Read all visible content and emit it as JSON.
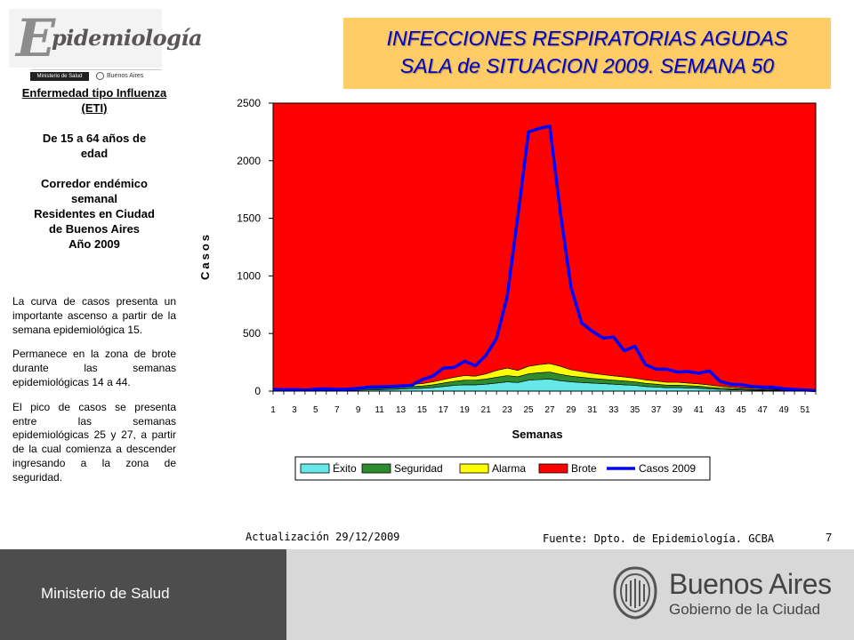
{
  "header": {
    "title_line1": "INFECCIONES RESPIRATORIAS AGUDAS",
    "title_line2": "SALA de SITUACION 2009. SEMANA 50"
  },
  "logo": {
    "word": "pidemiología",
    "initial": "E",
    "ministry": "Ministerio de Salud",
    "city": "Buenos Aires"
  },
  "sidebar": {
    "heading1": "Enfermedad tipo Influenza (ETI)",
    "age_line1": "De 15 a 64 años de",
    "age_line2": "edad",
    "corredor_line1": "Corredor endémico",
    "corredor_line2": "semanal",
    "residents_line1": "Residentes en Ciudad",
    "residents_line2": "de Buenos Aires",
    "year": "Año 2009",
    "paragraphs": [
      "La curva de casos presenta un importante ascenso a partir de la semana epidemiológica 15.",
      "Permanece en la zona de brote durante las semanas epidemiológicas 14 a 44.",
      "El pico de casos se presenta entre las semanas epidemiológicas 25 y 27, a partir de la cual comienza a descender ingresando a la zona de seguridad."
    ]
  },
  "chart_data": {
    "type": "area",
    "title": "",
    "xlabel": "Semanas",
    "ylabel": "Casos",
    "ylim": [
      0,
      2500
    ],
    "yticks": [
      0,
      500,
      1000,
      1500,
      2000,
      2500
    ],
    "x_tick_labels": [
      "1",
      "3",
      "5",
      "7",
      "9",
      "11",
      "13",
      "15",
      "17",
      "19",
      "21",
      "23",
      "25",
      "27",
      "29",
      "31",
      "33",
      "35",
      "37",
      "39",
      "41",
      "43",
      "45",
      "47",
      "49",
      "51"
    ],
    "x": [
      1,
      2,
      3,
      4,
      5,
      6,
      7,
      8,
      9,
      10,
      11,
      12,
      13,
      14,
      15,
      16,
      17,
      18,
      19,
      20,
      21,
      22,
      23,
      24,
      25,
      26,
      27,
      28,
      29,
      30,
      31,
      32,
      33,
      34,
      35,
      36,
      37,
      38,
      39,
      40,
      41,
      42,
      43,
      44,
      45,
      46,
      47,
      48,
      49,
      50,
      51,
      52
    ],
    "legend_position": "bottom",
    "series": [
      {
        "name": "Éxito",
        "kind": "stacked-area",
        "color": "#66e8e8",
        "values": [
          5,
          5,
          5,
          5,
          5,
          5,
          5,
          6,
          8,
          10,
          12,
          14,
          18,
          22,
          25,
          30,
          40,
          50,
          55,
          55,
          60,
          70,
          80,
          75,
          95,
          100,
          105,
          90,
          80,
          75,
          70,
          65,
          60,
          55,
          50,
          40,
          35,
          30,
          30,
          28,
          25,
          20,
          15,
          12,
          10,
          8,
          6,
          5,
          5,
          5,
          5,
          5
        ]
      },
      {
        "name": "Seguridad",
        "kind": "stacked-area",
        "color": "#2e8b2e",
        "values": [
          5,
          5,
          5,
          5,
          6,
          6,
          6,
          8,
          10,
          12,
          12,
          14,
          15,
          18,
          20,
          25,
          30,
          35,
          40,
          40,
          45,
          50,
          55,
          50,
          55,
          60,
          60,
          55,
          50,
          45,
          40,
          38,
          35,
          33,
          30,
          28,
          25,
          22,
          22,
          20,
          18,
          15,
          12,
          10,
          8,
          7,
          6,
          5,
          5,
          5,
          5,
          5
        ]
      },
      {
        "name": "Alarma",
        "kind": "stacked-area",
        "color": "#ffff00",
        "values": [
          5,
          5,
          5,
          5,
          5,
          5,
          5,
          6,
          8,
          10,
          10,
          12,
          15,
          18,
          20,
          25,
          30,
          35,
          40,
          35,
          45,
          60,
          65,
          55,
          65,
          70,
          75,
          70,
          55,
          50,
          45,
          40,
          38,
          35,
          32,
          30,
          28,
          25,
          25,
          22,
          20,
          18,
          15,
          12,
          10,
          8,
          7,
          6,
          5,
          5,
          5,
          5
        ]
      },
      {
        "name": "Brote",
        "kind": "stacked-area",
        "color": "#ff0000",
        "values": [
          2485,
          2485,
          2485,
          2485,
          2484,
          2484,
          2484,
          2480,
          2474,
          2468,
          2466,
          2460,
          2452,
          2442,
          2435,
          2420,
          2400,
          2380,
          2365,
          2370,
          2350,
          2320,
          2300,
          2320,
          2285,
          2270,
          2260,
          2285,
          2315,
          2330,
          2345,
          2357,
          2367,
          2377,
          2388,
          2402,
          2412,
          2423,
          2423,
          2430,
          2437,
          2447,
          2458,
          2466,
          2472,
          2477,
          2481,
          2484,
          2485,
          2485,
          2485,
          2485
        ]
      },
      {
        "name": "Casos 2009",
        "kind": "line",
        "color": "#0000ff",
        "values": [
          15,
          12,
          14,
          10,
          18,
          20,
          15,
          18,
          25,
          35,
          38,
          40,
          45,
          50,
          100,
          130,
          200,
          205,
          260,
          220,
          310,
          460,
          820,
          1520,
          2250,
          2280,
          2300,
          1550,
          900,
          590,
          520,
          460,
          470,
          350,
          390,
          230,
          190,
          190,
          165,
          170,
          155,
          175,
          85,
          60,
          55,
          40,
          35,
          35,
          20,
          15,
          10,
          5
        ]
      }
    ]
  }
}
